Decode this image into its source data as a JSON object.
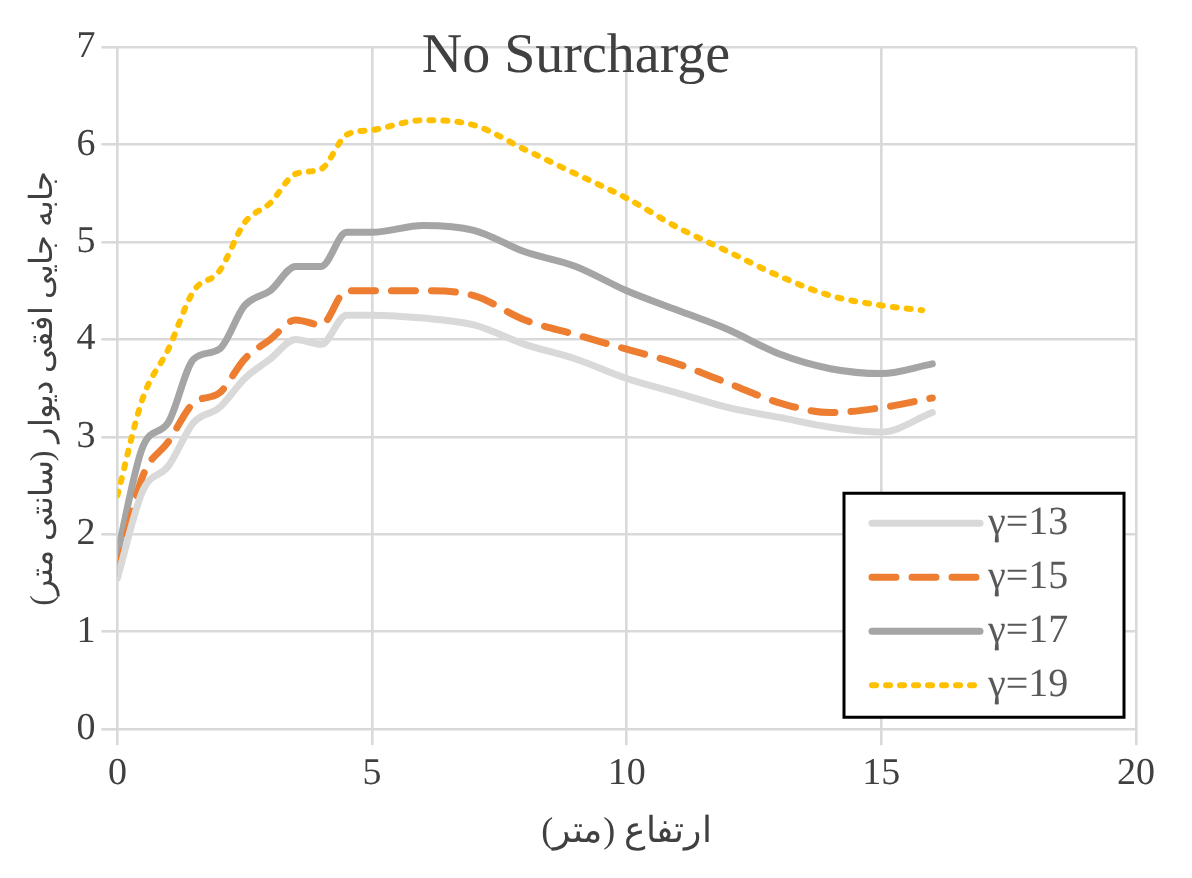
{
  "chart_data": {
    "type": "line",
    "title": "No Surcharge",
    "xlabel": "ارتفاع (متر)",
    "ylabel": "جابه جایی افقی دیوار (سانتی متر)",
    "x": [
      0,
      0.5,
      1,
      1.5,
      2,
      2.5,
      3,
      3.5,
      4,
      4.5,
      5,
      6,
      7,
      8,
      9,
      10,
      11,
      12,
      13,
      14,
      15,
      16
    ],
    "series": [
      {
        "name": "γ=13",
        "color": "#d9d9d9",
        "line_style": "solid",
        "values": [
          1.55,
          2.45,
          2.7,
          3.15,
          3.3,
          3.6,
          3.8,
          4.0,
          3.95,
          4.25,
          4.25,
          4.22,
          4.15,
          3.95,
          3.8,
          3.6,
          3.45,
          3.3,
          3.2,
          3.1,
          3.05,
          3.25
        ]
      },
      {
        "name": "γ=15",
        "color": "#ed7d31",
        "line_style": "dashed",
        "values": [
          1.6,
          2.6,
          2.95,
          3.35,
          3.45,
          3.8,
          4.0,
          4.2,
          4.15,
          4.5,
          4.5,
          4.5,
          4.45,
          4.2,
          4.05,
          3.9,
          3.75,
          3.55,
          3.35,
          3.25,
          3.3,
          3.4
        ]
      },
      {
        "name": "γ=17",
        "color": "#a5a5a5",
        "line_style": "solid",
        "values": [
          1.8,
          2.9,
          3.15,
          3.8,
          3.9,
          4.35,
          4.5,
          4.75,
          4.75,
          5.1,
          5.1,
          5.17,
          5.12,
          4.9,
          4.75,
          4.5,
          4.3,
          4.1,
          3.85,
          3.7,
          3.65,
          3.75
        ]
      },
      {
        "name": "γ=19",
        "color": "#ffc000",
        "line_style": "dotted",
        "x": [
          0,
          0.5,
          1,
          1.5,
          2,
          2.5,
          3,
          3.5,
          4,
          4.5,
          5,
          6,
          7,
          8,
          9,
          10,
          11,
          12,
          13,
          14,
          15,
          15.8
        ],
        "values": [
          2.4,
          3.4,
          3.9,
          4.5,
          4.7,
          5.2,
          5.4,
          5.7,
          5.75,
          6.1,
          6.15,
          6.25,
          6.2,
          5.95,
          5.7,
          5.45,
          5.15,
          4.9,
          4.65,
          4.45,
          4.35,
          4.3
        ]
      }
    ],
    "xlim": [
      0,
      20
    ],
    "xticks": [
      0,
      5,
      10,
      15,
      20
    ],
    "ylim": [
      0,
      7
    ],
    "yticks": [
      0,
      1,
      2,
      3,
      4,
      5,
      6,
      7
    ],
    "grid": true,
    "legend": "bottom right",
    "marker": "none"
  }
}
